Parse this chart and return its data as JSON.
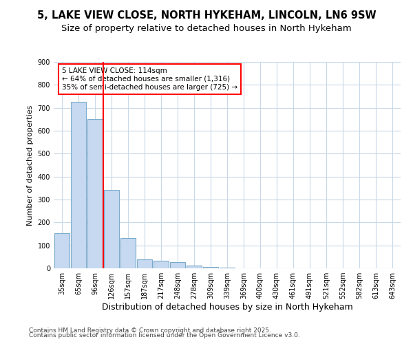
{
  "title1": "5, LAKE VIEW CLOSE, NORTH HYKEHAM, LINCOLN, LN6 9SW",
  "title2": "Size of property relative to detached houses in North Hykeham",
  "xlabel": "Distribution of detached houses by size in North Hykeham",
  "ylabel": "Number of detached properties",
  "categories": [
    "35sqm",
    "65sqm",
    "96sqm",
    "126sqm",
    "157sqm",
    "187sqm",
    "217sqm",
    "248sqm",
    "278sqm",
    "309sqm",
    "339sqm",
    "369sqm",
    "400sqm",
    "430sqm",
    "461sqm",
    "491sqm",
    "521sqm",
    "552sqm",
    "582sqm",
    "613sqm",
    "643sqm"
  ],
  "values": [
    153,
    725,
    650,
    343,
    133,
    40,
    33,
    28,
    13,
    5,
    3,
    0,
    0,
    0,
    0,
    0,
    0,
    0,
    0,
    0,
    0
  ],
  "bar_color": "#c6d9f0",
  "bar_edge_color": "#7aabcc",
  "red_line_x": 2.5,
  "annotation_text": "5 LAKE VIEW CLOSE: 114sqm\n← 64% of detached houses are smaller (1,316)\n35% of semi-detached houses are larger (725) →",
  "annotation_box_color": "white",
  "annotation_box_edge_color": "red",
  "ylim": [
    0,
    900
  ],
  "yticks": [
    0,
    100,
    200,
    300,
    400,
    500,
    600,
    700,
    800,
    900
  ],
  "background_color": "white",
  "plot_background_color": "white",
  "grid_color": "#c8d8e8",
  "footer1": "Contains HM Land Registry data © Crown copyright and database right 2025.",
  "footer2": "Contains public sector information licensed under the Open Government Licence v3.0.",
  "title1_fontsize": 10.5,
  "title2_fontsize": 9.5,
  "xlabel_fontsize": 9,
  "ylabel_fontsize": 8,
  "tick_fontsize": 7,
  "annotation_fontsize": 7.5,
  "footer_fontsize": 6.5
}
